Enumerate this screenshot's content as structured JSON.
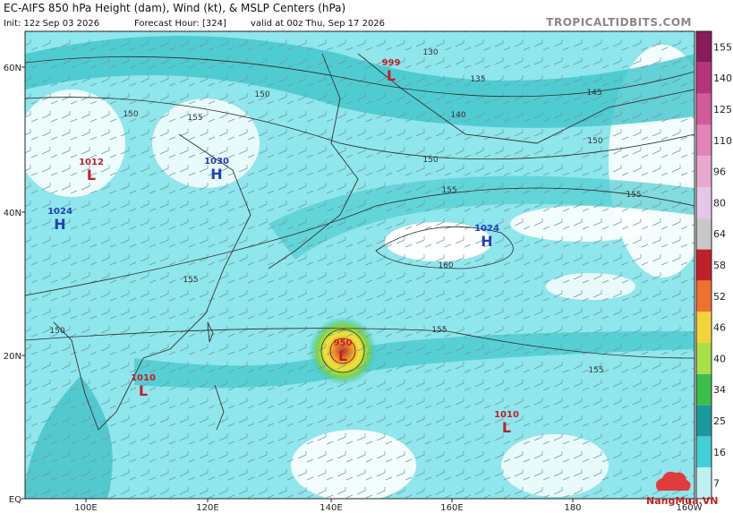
{
  "header": {
    "title": "EC-AIFS 850 hPa Height (dam), Wind (kt), & MSLP Centers (hPa)",
    "init": "Init: 12z Sep 03 2026",
    "forecast_hour": "Forecast Hour: [324]",
    "valid": "valid at 00z Thu, Sep 17 2026",
    "source": "TROPICALTIDBITS.COM"
  },
  "map": {
    "lat_labels": [
      "60N",
      "40N",
      "20N",
      "EQ"
    ],
    "lon_labels": [
      "100E",
      "120E",
      "140E",
      "160E",
      "180",
      "160W"
    ],
    "pressure_centers": [
      {
        "value": "999",
        "symbol": "L"
      },
      {
        "value": "1012",
        "symbol": "L"
      },
      {
        "value": "1030",
        "symbol": "H"
      },
      {
        "value": "1024",
        "symbol": "H"
      },
      {
        "value": "1024",
        "symbol": "H"
      },
      {
        "value": "950",
        "symbol": "L"
      },
      {
        "value": "1010",
        "symbol": "L"
      },
      {
        "value": "1010",
        "symbol": "L"
      }
    ],
    "contour_labels": [
      "130",
      "135",
      "140",
      "145",
      "150",
      "150",
      "150",
      "150",
      "155",
      "155",
      "155",
      "155",
      "155",
      "155",
      "160",
      "150"
    ]
  },
  "colorbar": {
    "labels": [
      "155",
      "140",
      "125",
      "110",
      "96",
      "80",
      "64",
      "58",
      "52",
      "46",
      "40",
      "34",
      "25",
      "16",
      "7"
    ]
  },
  "watermark": "NangMua.VN"
}
